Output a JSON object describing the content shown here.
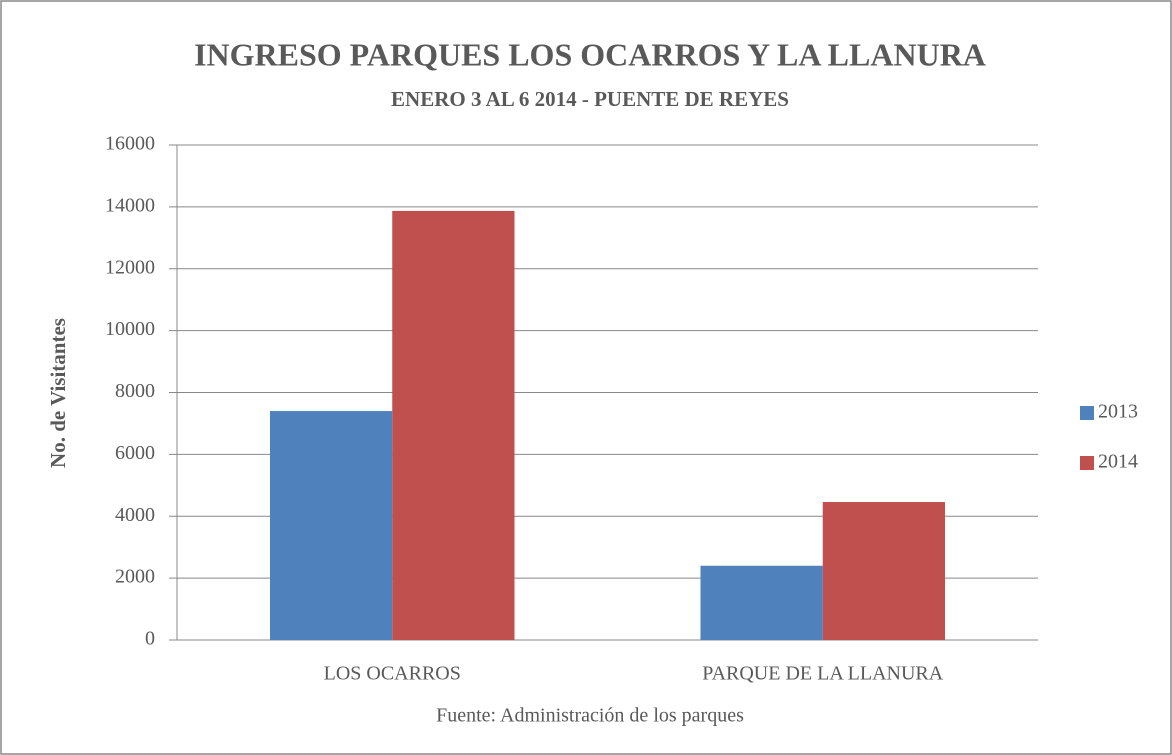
{
  "chart_data": {
    "type": "bar",
    "title": "INGRESO PARQUES LOS OCARROS Y LA LLANURA",
    "subtitle": "ENERO 3 AL 6 2014 - PUENTE DE REYES",
    "y_label": "No. de Visitantes",
    "source": "Fuente: Administración de los parques",
    "categories": [
      "LOS OCARROS",
      "PARQUE DE LA LLANURA"
    ],
    "series": [
      {
        "name": "2013",
        "color": "#4f81bd",
        "values": [
          7400,
          2400
        ]
      },
      {
        "name": "2014",
        "color": "#c0504d",
        "values": [
          13870,
          4460
        ]
      }
    ],
    "ylim": [
      0,
      16000
    ],
    "yticks": [
      0,
      2000,
      4000,
      6000,
      8000,
      10000,
      12000,
      14000,
      16000
    ],
    "grid": true,
    "legend": "right"
  }
}
